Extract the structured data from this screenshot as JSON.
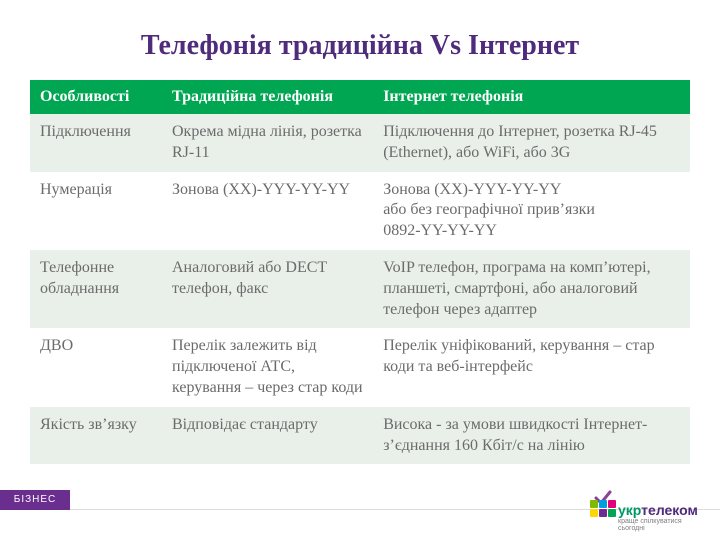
{
  "title": {
    "text": "Телефонія традиційна Vs Інтернет",
    "color": "#4f2b7b",
    "fontsize": 28
  },
  "table": {
    "type": "table",
    "header_bg": "#00a651",
    "header_color": "#ffffff",
    "row_bg_odd": "#e9f0ea",
    "row_bg_even": "#ffffff",
    "cell_color": "#6b6b6b",
    "col_widths_pct": [
      20,
      32,
      48
    ],
    "columns": [
      "Особливості",
      "Традиційна телефонія",
      "Інтернет телефонія"
    ],
    "rows": [
      [
        "Підключення",
        "Окрема мідна лінія, розетка RJ-11",
        "Підключення до Інтернет, розетка RJ-45 (Ethernet), або WiFi, або 3G"
      ],
      [
        "Нумерація",
        "Зонова (XX)-YYY-YY-YY",
        "Зонова (XX)-YYY-YY-YY\nабо без географічної прив’язки\n0892-YY-YY-YY"
      ],
      [
        "Телефонне обладнання",
        "Аналоговий або DECT телефон, факс",
        "VoIP телефон, програма на комп’ютері, планшеті, смартфоні, або аналоговий телефон через адаптер"
      ],
      [
        "ДВО",
        "Перелік залежить від підключеної АТС, керування – через стар коди",
        "Перелік уніфікований, керування – стар коди та веб-інтерфейс"
      ],
      [
        "Якість зв’язку",
        "Відповідає стандарту",
        "Висока - за умови швидкості Інтернет-з’єднання 160 Кбіт/с на лінію"
      ]
    ]
  },
  "footer": {
    "bar_label": "БІЗНЕС",
    "bar_bg": "#6a2e8f",
    "logo": {
      "accent_text": "укр",
      "rest_text": "телеком",
      "tagline": "краще спілкуватися сьогодні",
      "accent_color": "#009966",
      "rest_color": "#4f2b7b",
      "check_color": "#8e3f97",
      "square_colors": [
        "#7fba00",
        "#009de0",
        "#e2007a",
        "#ffd500",
        "#6f2c91",
        "#00a651"
      ]
    }
  }
}
